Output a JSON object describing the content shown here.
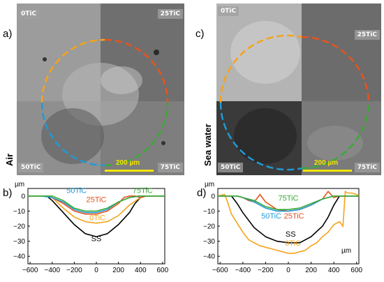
{
  "panels": {
    "a": {
      "label": "a)",
      "environment": "Air",
      "scale": "200 µm",
      "tags": {
        "tl": "0TiC",
        "tr": "25TiC",
        "bl": "50TiC",
        "br": "75TiC"
      }
    },
    "b": {
      "label": "b)"
    },
    "c": {
      "label": "c)",
      "environment": "Sea water",
      "scale": "200 µm",
      "tags": {
        "tl": "0TiC",
        "tr": "25TiC",
        "bl": "50TiC",
        "br": "75TiC"
      }
    },
    "d": {
      "label": "d)"
    }
  },
  "colors": {
    "SS": "#000000",
    "0TiC": "#f5a31a",
    "25TiC": "#e8531e",
    "50TiC": "#1f9ad6",
    "75TiC": "#3aaa35"
  },
  "chart_data": [
    {
      "type": "line",
      "panel": "b",
      "ylabel": "µm",
      "xlim": [
        -620,
        620
      ],
      "ylim": [
        -45,
        5
      ],
      "xticks": [
        -600,
        -400,
        -200,
        0,
        200,
        400,
        600
      ],
      "yticks": [
        0,
        -10,
        -20,
        -30,
        -40
      ],
      "series": [
        {
          "name": "SS",
          "x": [
            -620,
            -450,
            -400,
            -300,
            -200,
            -100,
            0,
            100,
            200,
            300,
            350,
            400,
            450,
            620
          ],
          "y": [
            0,
            0,
            -3,
            -11,
            -19,
            -25,
            -27,
            -25,
            -19,
            -11,
            -5,
            -1,
            0,
            0
          ]
        },
        {
          "name": "0TiC",
          "x": [
            -620,
            -450,
            -400,
            -300,
            -200,
            -100,
            0,
            100,
            200,
            300,
            400,
            450,
            620
          ],
          "y": [
            0,
            0,
            -1,
            -8,
            -14,
            -17,
            -18,
            -17,
            -13,
            -6,
            -1,
            0,
            0
          ]
        },
        {
          "name": "25TiC",
          "x": [
            -620,
            -480,
            -400,
            -300,
            -200,
            -100,
            0,
            100,
            200,
            250,
            300,
            350,
            400,
            450,
            620
          ],
          "y": [
            0,
            0,
            -1,
            -5,
            -10,
            -12,
            -12,
            -10,
            -5,
            -1,
            0,
            0,
            -1,
            0,
            0
          ]
        },
        {
          "name": "50TiC",
          "x": [
            -620,
            -500,
            -400,
            -300,
            -200,
            -100,
            0,
            100,
            200,
            300,
            400,
            620
          ],
          "y": [
            0,
            0,
            -1,
            -4,
            -9,
            -11,
            -11,
            -9,
            -4,
            -1,
            0,
            0
          ]
        },
        {
          "name": "75TiC",
          "x": [
            -620,
            -500,
            -400,
            -300,
            -200,
            -100,
            0,
            100,
            200,
            300,
            380,
            450,
            620
          ],
          "y": [
            0,
            0,
            0,
            -3,
            -8,
            -10,
            -10,
            -8,
            -4,
            -1,
            0,
            0,
            0
          ]
        }
      ],
      "annotations": [
        {
          "text": "50TiC",
          "x": -180,
          "y": 2,
          "series": "50TiC"
        },
        {
          "text": "75TiC",
          "x": 420,
          "y": 2,
          "series": "75TiC"
        },
        {
          "text": "25TiC",
          "x": 0,
          "y": -4,
          "series": "25TiC"
        },
        {
          "text": "0TiC",
          "x": 10,
          "y": -16,
          "series": "0TiC"
        },
        {
          "text": "SS",
          "x": 0,
          "y": -30,
          "series": "SS"
        }
      ]
    },
    {
      "type": "line",
      "panel": "d",
      "ylabel": "µm",
      "xlabel": "µm",
      "xlim": [
        -620,
        620
      ],
      "ylim": [
        -45,
        5
      ],
      "xticks": [
        -600,
        -400,
        -200,
        0,
        200,
        400,
        600
      ],
      "yticks": [
        0,
        -10,
        -20,
        -30,
        -40
      ],
      "series": [
        {
          "name": "SS",
          "x": [
            -620,
            -500,
            -450,
            -400,
            -300,
            -200,
            -100,
            0,
            100,
            200,
            300,
            350,
            400,
            450,
            620
          ],
          "y": [
            0,
            0,
            -5,
            -11,
            -21,
            -27,
            -30,
            -31,
            -31,
            -27,
            -20,
            -14,
            -6,
            0,
            0
          ]
        },
        {
          "name": "0TiC",
          "x": [
            -620,
            -560,
            -530,
            -500,
            -450,
            -400,
            -350,
            -300,
            -250,
            -200,
            -150,
            -100,
            -50,
            0,
            50,
            100,
            150,
            200,
            250,
            300,
            350,
            400,
            450,
            480,
            500,
            520,
            560,
            600,
            620
          ],
          "y": [
            0,
            1,
            -5,
            -12,
            -18,
            -24,
            -29,
            -31,
            -33,
            -34,
            -35,
            -36,
            -37,
            -38,
            -38,
            -37,
            -36,
            -33,
            -31,
            -27,
            -24,
            -19,
            -17,
            -20,
            3,
            2,
            2,
            1,
            0
          ]
        },
        {
          "name": "25TiC",
          "x": [
            -620,
            -450,
            -400,
            -350,
            -300,
            -250,
            -200,
            -100,
            0,
            100,
            200,
            300,
            350,
            400,
            450,
            500,
            620
          ],
          "y": [
            0,
            0,
            -1,
            -3,
            -4,
            1,
            -4,
            -9,
            -10,
            -9,
            -6,
            -2,
            3,
            -1,
            0,
            0,
            0
          ]
        },
        {
          "name": "50TiC",
          "x": [
            -620,
            -450,
            -400,
            -300,
            -200,
            -100,
            0,
            100,
            200,
            300,
            350,
            400,
            450,
            620
          ],
          "y": [
            0,
            0,
            -1,
            -4,
            -8,
            -10,
            -10,
            -9,
            -6,
            -2,
            -1,
            0,
            0,
            0
          ]
        },
        {
          "name": "75TiC",
          "x": [
            -620,
            -450,
            -400,
            -300,
            -200,
            -100,
            0,
            100,
            200,
            300,
            350,
            400,
            450,
            620
          ],
          "y": [
            0,
            0,
            -1,
            -3,
            -7,
            -9,
            -9,
            -8,
            -5,
            -2,
            -1,
            0,
            0,
            0
          ]
        }
      ],
      "annotations": [
        {
          "text": "75TiC",
          "x": 0,
          "y": -3,
          "series": "75TiC"
        },
        {
          "text": "50TiC",
          "x": -150,
          "y": -15,
          "series": "50TiC"
        },
        {
          "text": "25TiC",
          "x": 50,
          "y": -15,
          "series": "25TiC"
        },
        {
          "text": "SS",
          "x": 20,
          "y": -27,
          "series": "SS"
        },
        {
          "text": "0TiC",
          "x": 40,
          "y": -33,
          "series": "0TiC"
        }
      ]
    }
  ]
}
